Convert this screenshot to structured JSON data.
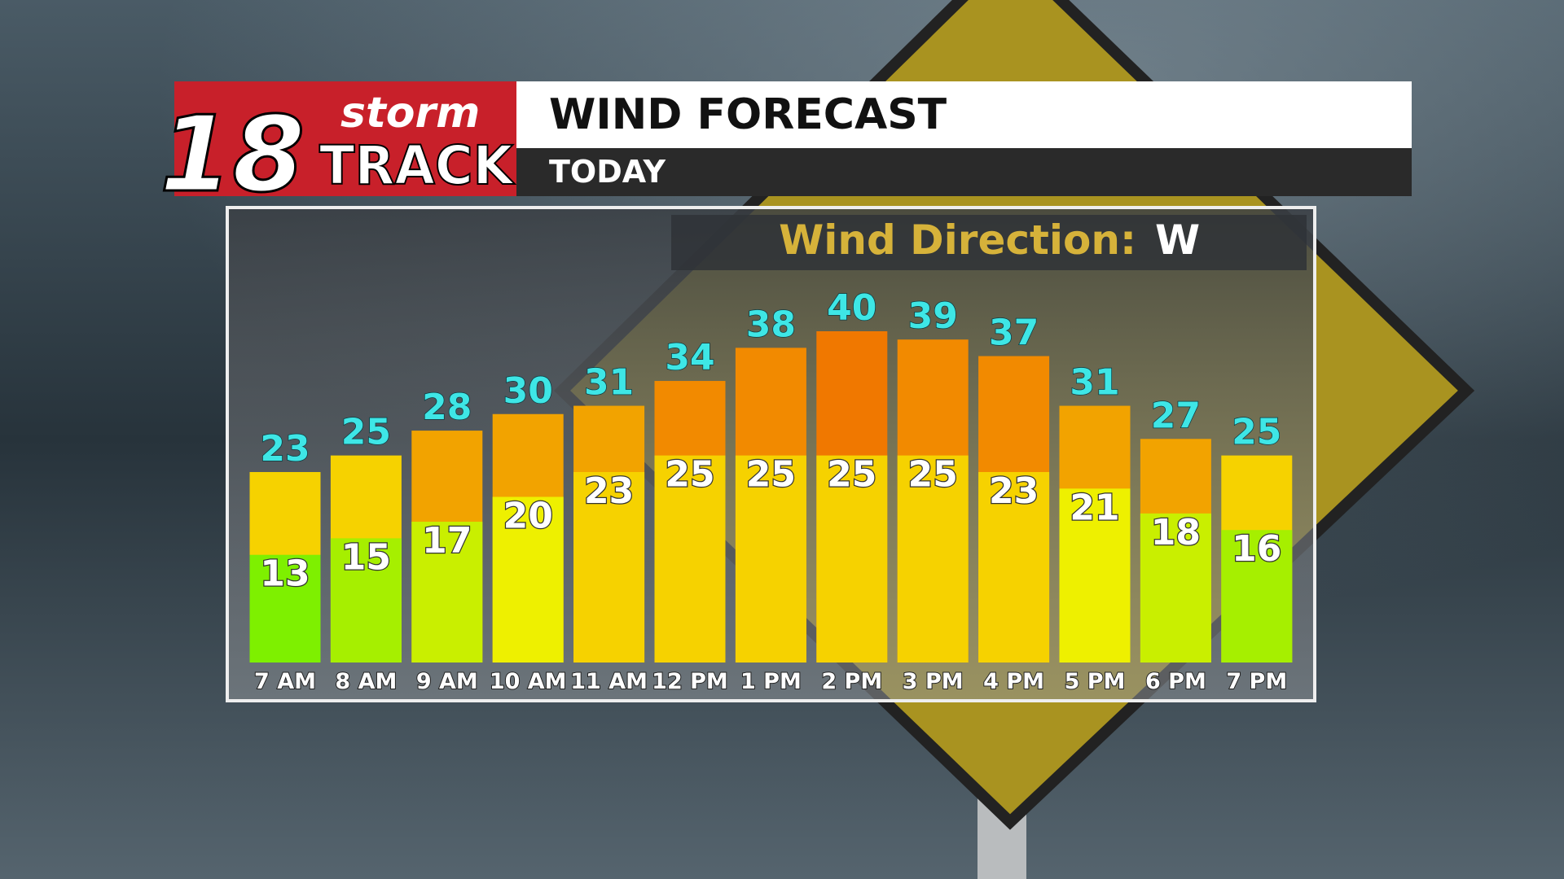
{
  "header": {
    "logo_number": "18",
    "logo_word_top": "storm",
    "logo_word_bottom": "TRACK",
    "title": "WIND FORECAST",
    "subtitle": "TODAY"
  },
  "chart_data": {
    "type": "bar",
    "annotation_label": "Wind Direction:",
    "annotation_value": "W",
    "categories": [
      "7 AM",
      "8 AM",
      "9 AM",
      "10 AM",
      "11 AM",
      "12 PM",
      "1 PM",
      "2 PM",
      "3 PM",
      "4 PM",
      "5 PM",
      "6 PM",
      "7 PM"
    ],
    "series": [
      {
        "values": [
          23,
          25,
          28,
          30,
          31,
          34,
          38,
          40,
          39,
          37,
          31,
          27,
          25
        ],
        "label_color": "#3ee6e6"
      },
      {
        "values": [
          13,
          15,
          17,
          20,
          23,
          25,
          25,
          25,
          25,
          23,
          21,
          18,
          16
        ],
        "label_color": "#ffffff"
      }
    ]
  }
}
